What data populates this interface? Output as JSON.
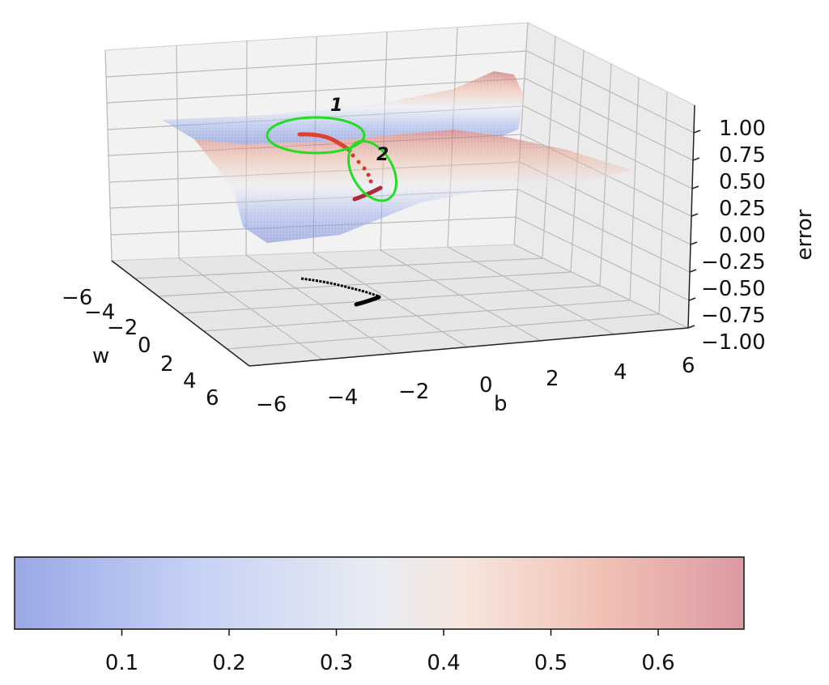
{
  "chart_data": [
    {
      "type": "surface3d",
      "xlabel": "b",
      "ylabel": "w",
      "zlabel": "error",
      "x_ticks": [
        "−6",
        "−4",
        "−2",
        "0",
        "2",
        "4",
        "6"
      ],
      "y_ticks": [
        "−6",
        "−4",
        "−2",
        "0",
        "2",
        "4",
        "6"
      ],
      "z_ticks": [
        "1.00",
        "0.75",
        "0.50",
        "0.25",
        "0.00",
        "−0.25",
        "−0.50",
        "−0.75",
        "−1.00"
      ],
      "xlim": [
        -6,
        6
      ],
      "ylim": [
        -6,
        6
      ],
      "zlim": [
        -1,
        1
      ],
      "colormap": "coolwarm",
      "surface_alpha": 0.45,
      "grid": true,
      "annotations": [
        {
          "label": "1",
          "color": "#22dd22"
        },
        {
          "label": "2",
          "color": "#22dd22"
        }
      ],
      "trajectory_color": "#d9362b",
      "projection_color": "#000000"
    },
    {
      "type": "colorbar",
      "orientation": "horizontal",
      "ticks": [
        "0.1",
        "0.2",
        "0.3",
        "0.4",
        "0.5",
        "0.6"
      ],
      "tick_values": [
        0.1,
        0.2,
        0.3,
        0.4,
        0.5,
        0.6
      ],
      "range": [
        0.0,
        0.68
      ],
      "colormap": "coolwarm"
    }
  ]
}
